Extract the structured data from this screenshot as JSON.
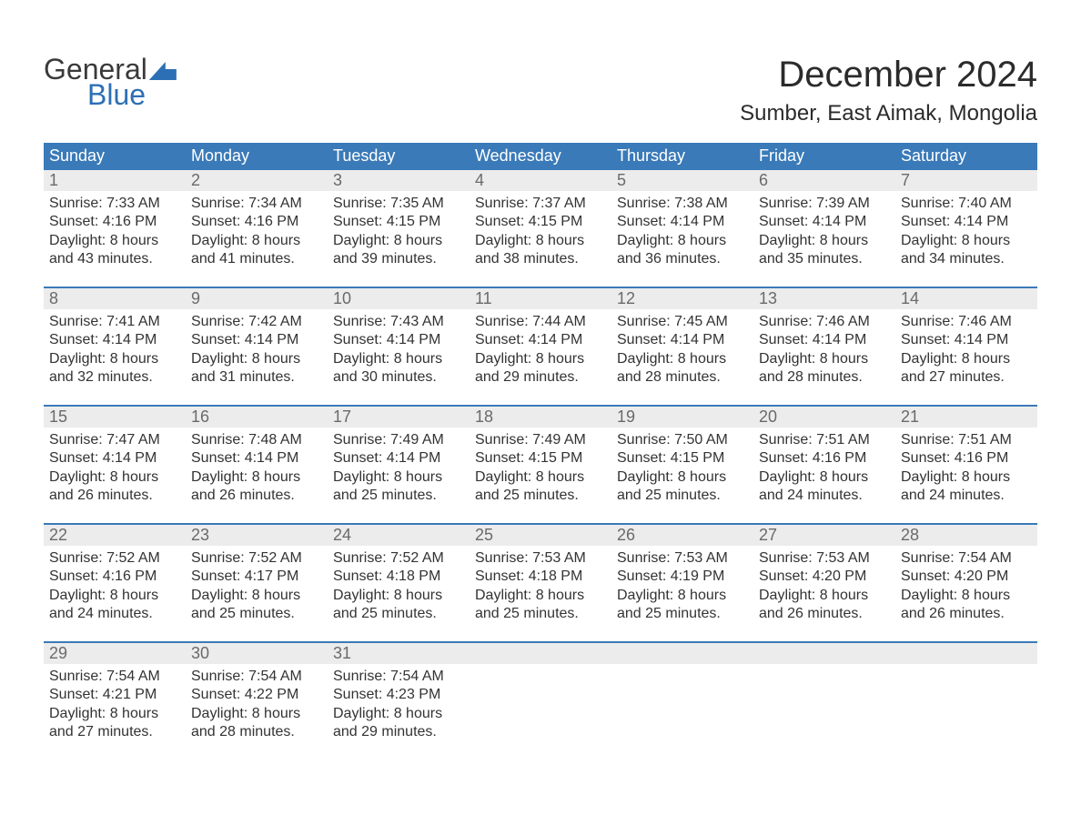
{
  "logo": {
    "general": "General",
    "blue": "Blue"
  },
  "title": "December 2024",
  "location": "Sumber, East Aimak, Mongolia",
  "colors": {
    "header_bg": "#3a7ab8",
    "header_text": "#ffffff",
    "daynum_bg": "#ececec",
    "daynum_text": "#6a6a6a",
    "body_text": "#333333",
    "accent": "#2d6fb5",
    "page_bg": "#ffffff"
  },
  "day_headers": [
    "Sunday",
    "Monday",
    "Tuesday",
    "Wednesday",
    "Thursday",
    "Friday",
    "Saturday"
  ],
  "weeks": [
    [
      {
        "n": "1",
        "sunrise": "7:33 AM",
        "sunset": "4:16 PM",
        "dl1": "Daylight: 8 hours",
        "dl2": "and 43 minutes."
      },
      {
        "n": "2",
        "sunrise": "7:34 AM",
        "sunset": "4:16 PM",
        "dl1": "Daylight: 8 hours",
        "dl2": "and 41 minutes."
      },
      {
        "n": "3",
        "sunrise": "7:35 AM",
        "sunset": "4:15 PM",
        "dl1": "Daylight: 8 hours",
        "dl2": "and 39 minutes."
      },
      {
        "n": "4",
        "sunrise": "7:37 AM",
        "sunset": "4:15 PM",
        "dl1": "Daylight: 8 hours",
        "dl2": "and 38 minutes."
      },
      {
        "n": "5",
        "sunrise": "7:38 AM",
        "sunset": "4:14 PM",
        "dl1": "Daylight: 8 hours",
        "dl2": "and 36 minutes."
      },
      {
        "n": "6",
        "sunrise": "7:39 AM",
        "sunset": "4:14 PM",
        "dl1": "Daylight: 8 hours",
        "dl2": "and 35 minutes."
      },
      {
        "n": "7",
        "sunrise": "7:40 AM",
        "sunset": "4:14 PM",
        "dl1": "Daylight: 8 hours",
        "dl2": "and 34 minutes."
      }
    ],
    [
      {
        "n": "8",
        "sunrise": "7:41 AM",
        "sunset": "4:14 PM",
        "dl1": "Daylight: 8 hours",
        "dl2": "and 32 minutes."
      },
      {
        "n": "9",
        "sunrise": "7:42 AM",
        "sunset": "4:14 PM",
        "dl1": "Daylight: 8 hours",
        "dl2": "and 31 minutes."
      },
      {
        "n": "10",
        "sunrise": "7:43 AM",
        "sunset": "4:14 PM",
        "dl1": "Daylight: 8 hours",
        "dl2": "and 30 minutes."
      },
      {
        "n": "11",
        "sunrise": "7:44 AM",
        "sunset": "4:14 PM",
        "dl1": "Daylight: 8 hours",
        "dl2": "and 29 minutes."
      },
      {
        "n": "12",
        "sunrise": "7:45 AM",
        "sunset": "4:14 PM",
        "dl1": "Daylight: 8 hours",
        "dl2": "and 28 minutes."
      },
      {
        "n": "13",
        "sunrise": "7:46 AM",
        "sunset": "4:14 PM",
        "dl1": "Daylight: 8 hours",
        "dl2": "and 28 minutes."
      },
      {
        "n": "14",
        "sunrise": "7:46 AM",
        "sunset": "4:14 PM",
        "dl1": "Daylight: 8 hours",
        "dl2": "and 27 minutes."
      }
    ],
    [
      {
        "n": "15",
        "sunrise": "7:47 AM",
        "sunset": "4:14 PM",
        "dl1": "Daylight: 8 hours",
        "dl2": "and 26 minutes."
      },
      {
        "n": "16",
        "sunrise": "7:48 AM",
        "sunset": "4:14 PM",
        "dl1": "Daylight: 8 hours",
        "dl2": "and 26 minutes."
      },
      {
        "n": "17",
        "sunrise": "7:49 AM",
        "sunset": "4:14 PM",
        "dl1": "Daylight: 8 hours",
        "dl2": "and 25 minutes."
      },
      {
        "n": "18",
        "sunrise": "7:49 AM",
        "sunset": "4:15 PM",
        "dl1": "Daylight: 8 hours",
        "dl2": "and 25 minutes."
      },
      {
        "n": "19",
        "sunrise": "7:50 AM",
        "sunset": "4:15 PM",
        "dl1": "Daylight: 8 hours",
        "dl2": "and 25 minutes."
      },
      {
        "n": "20",
        "sunrise": "7:51 AM",
        "sunset": "4:16 PM",
        "dl1": "Daylight: 8 hours",
        "dl2": "and 24 minutes."
      },
      {
        "n": "21",
        "sunrise": "7:51 AM",
        "sunset": "4:16 PM",
        "dl1": "Daylight: 8 hours",
        "dl2": "and 24 minutes."
      }
    ],
    [
      {
        "n": "22",
        "sunrise": "7:52 AM",
        "sunset": "4:16 PM",
        "dl1": "Daylight: 8 hours",
        "dl2": "and 24 minutes."
      },
      {
        "n": "23",
        "sunrise": "7:52 AM",
        "sunset": "4:17 PM",
        "dl1": "Daylight: 8 hours",
        "dl2": "and 25 minutes."
      },
      {
        "n": "24",
        "sunrise": "7:52 AM",
        "sunset": "4:18 PM",
        "dl1": "Daylight: 8 hours",
        "dl2": "and 25 minutes."
      },
      {
        "n": "25",
        "sunrise": "7:53 AM",
        "sunset": "4:18 PM",
        "dl1": "Daylight: 8 hours",
        "dl2": "and 25 minutes."
      },
      {
        "n": "26",
        "sunrise": "7:53 AM",
        "sunset": "4:19 PM",
        "dl1": "Daylight: 8 hours",
        "dl2": "and 25 minutes."
      },
      {
        "n": "27",
        "sunrise": "7:53 AM",
        "sunset": "4:20 PM",
        "dl1": "Daylight: 8 hours",
        "dl2": "and 26 minutes."
      },
      {
        "n": "28",
        "sunrise": "7:54 AM",
        "sunset": "4:20 PM",
        "dl1": "Daylight: 8 hours",
        "dl2": "and 26 minutes."
      }
    ],
    [
      {
        "n": "29",
        "sunrise": "7:54 AM",
        "sunset": "4:21 PM",
        "dl1": "Daylight: 8 hours",
        "dl2": "and 27 minutes."
      },
      {
        "n": "30",
        "sunrise": "7:54 AM",
        "sunset": "4:22 PM",
        "dl1": "Daylight: 8 hours",
        "dl2": "and 28 minutes."
      },
      {
        "n": "31",
        "sunrise": "7:54 AM",
        "sunset": "4:23 PM",
        "dl1": "Daylight: 8 hours",
        "dl2": "and 29 minutes."
      },
      {
        "empty": true
      },
      {
        "empty": true
      },
      {
        "empty": true
      },
      {
        "empty": true
      }
    ]
  ],
  "labels": {
    "sunrise_prefix": "Sunrise: ",
    "sunset_prefix": "Sunset: "
  }
}
